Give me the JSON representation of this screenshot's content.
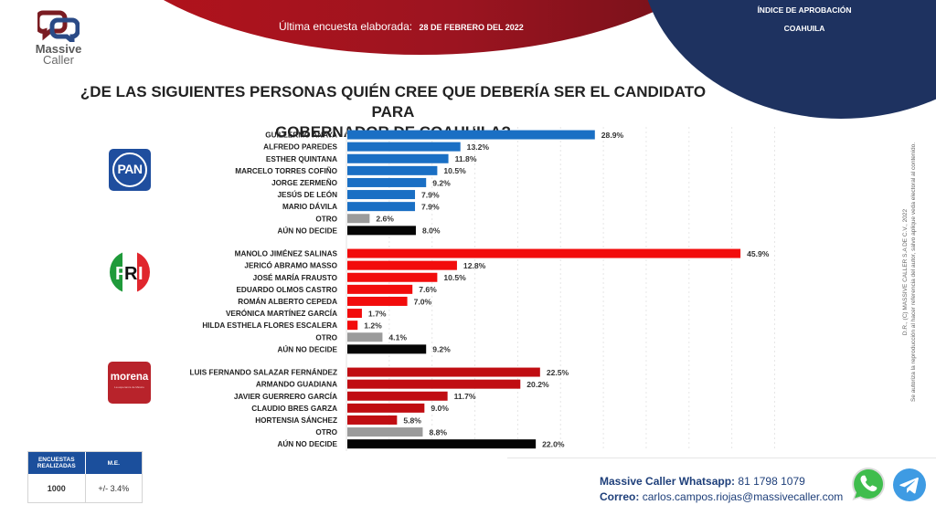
{
  "header": {
    "brand_line1": "Massive",
    "brand_line2": "Caller",
    "survey_label": "Última encuesta elaborada:",
    "survey_date": "28 DE FEBRERO DEL 2022",
    "index_title": "ÍNDICE DE APROBACIÓN",
    "index_state": "COAHUILA"
  },
  "colors": {
    "pan": "#1a6fc4",
    "pri": "#f20c0c",
    "morena": "#c00d12",
    "otro": "#9b9b9b",
    "undecided": "#050505",
    "header_red": "#b5121b",
    "header_blue": "#1e3260"
  },
  "party_logos": {
    "pan": "PAN",
    "pri": "PRI",
    "morena": "morena",
    "morena_sub": "La esperanza de México"
  },
  "chart_data": {
    "type": "bar",
    "orientation": "horizontal",
    "title": "¿DE LAS SIGUIENTES PERSONAS QUIÉN CREE QUE DEBERÍA SER EL CANDIDATO PARA GOBERNADOR DE COAHUILA?",
    "xlabel": "",
    "ylabel": "",
    "unit": "%",
    "xlim": [
      0,
      50
    ],
    "grid": true,
    "groups": [
      {
        "party": "PAN",
        "color_key": "pan",
        "items": [
          {
            "label": "GUILLERMO ANAYA",
            "value": 28.9
          },
          {
            "label": "ALFREDO PAREDES",
            "value": 13.2
          },
          {
            "label": "ESTHER QUINTANA",
            "value": 11.8
          },
          {
            "label": "MARCELO TORRES COFIÑO",
            "value": 10.5
          },
          {
            "label": "JORGE ZERMEÑO",
            "value": 9.2
          },
          {
            "label": "JESÚS DE LEÓN",
            "value": 7.9
          },
          {
            "label": "MARIO DÁVILA",
            "value": 7.9
          },
          {
            "label": "OTRO",
            "value": 2.6,
            "kind": "otro"
          },
          {
            "label": "AÚN NO DECIDE",
            "value": 8.0,
            "kind": "undecided"
          }
        ]
      },
      {
        "party": "PRI",
        "color_key": "pri",
        "items": [
          {
            "label": "MANOLO JIMÉNEZ SALINAS",
            "value": 45.9
          },
          {
            "label": "JERICÓ ABRAMO MASSO",
            "value": 12.8
          },
          {
            "label": "JOSÉ MARÍA FRAUSTO",
            "value": 10.5
          },
          {
            "label": "EDUARDO OLMOS CASTRO",
            "value": 7.6
          },
          {
            "label": "ROMÁN ALBERTO CEPEDA",
            "value": 7.0
          },
          {
            "label": "VERÓNICA MARTÍNEZ GARCÍA",
            "value": 1.7
          },
          {
            "label": "HILDA ESTHELA FLORES ESCALERA",
            "value": 1.2
          },
          {
            "label": "OTRO",
            "value": 4.1,
            "kind": "otro"
          },
          {
            "label": "AÚN NO DECIDE",
            "value": 9.2,
            "kind": "undecided"
          }
        ]
      },
      {
        "party": "MORENA",
        "color_key": "morena",
        "items": [
          {
            "label": "LUIS FERNANDO SALAZAR FERNÁNDEZ",
            "value": 22.5
          },
          {
            "label": "ARMANDO GUADIANA",
            "value": 20.2
          },
          {
            "label": "JAVIER GUERRERO GARCÍA",
            "value": 11.7
          },
          {
            "label": "CLAUDIO BRES GARZA",
            "value": 9.0
          },
          {
            "label": "HORTENSIA SÁNCHEZ",
            "value": 5.8
          },
          {
            "label": "OTRO",
            "value": 8.8,
            "kind": "otro"
          },
          {
            "label": "AÚN NO DECIDE",
            "value": 22.0,
            "kind": "undecided"
          }
        ]
      }
    ]
  },
  "question": {
    "line1": "¿DE LAS SIGUIENTES PERSONAS QUIÉN CREE QUE DEBERÍA SER EL CANDIDATO PARA",
    "line2": "GOBERNADOR DE COAHUILA?"
  },
  "stats": {
    "col1_header": "ENCUESTAS REALIZADAS",
    "col2_header": "M.E.",
    "col1_value": "1000",
    "col2_value": "+/- 3.4%"
  },
  "contact": {
    "whatsapp_label": "Massive Caller Whatsapp:",
    "whatsapp_value": "81 1798 1079",
    "email_label": "Correo:",
    "email_value": "carlos.campos.riojas@massivecaller.com"
  },
  "copyright": {
    "line1": "D.R., (C) MASSIVE CALLER S.A DE C.V., 2022",
    "line2": "Se autoriza la reproducción al hacer referencia del autor, salvo aplique veda electoral al contenido."
  }
}
